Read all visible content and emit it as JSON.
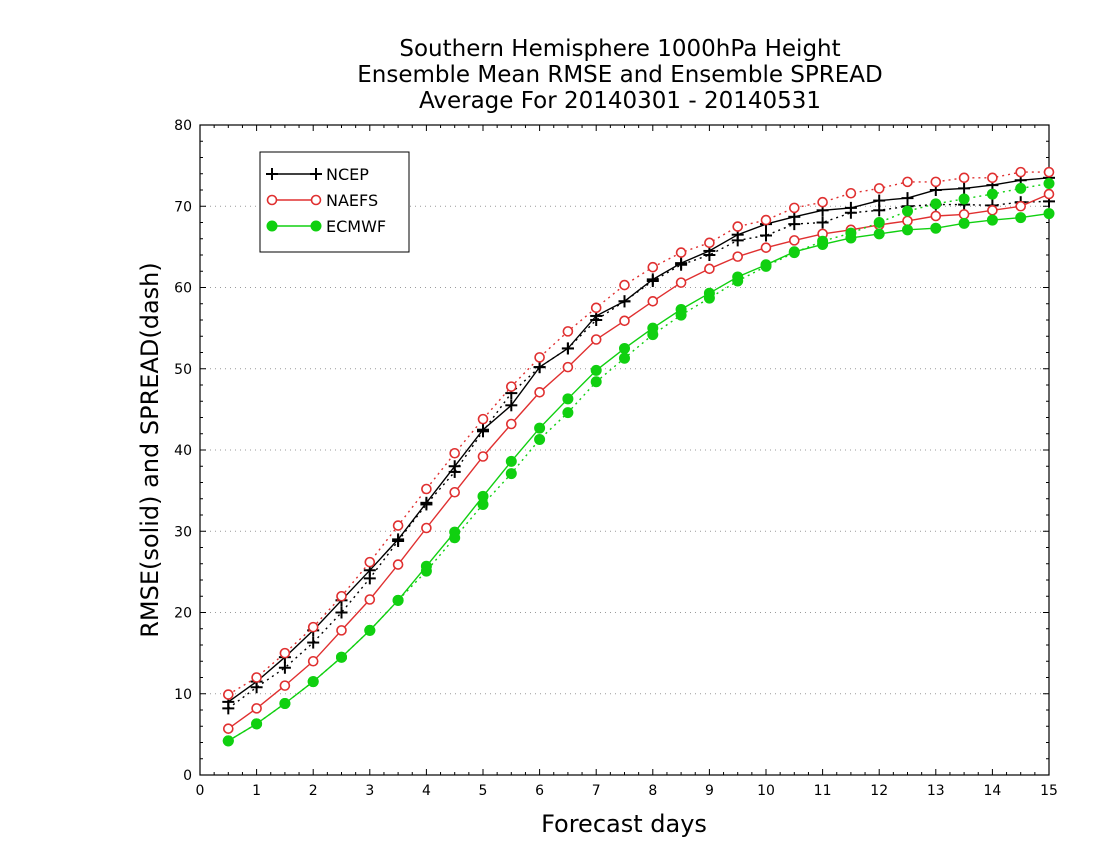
{
  "title": {
    "line1": "Southern Hemisphere 1000hPa Height",
    "line2": "Ensemble Mean RMSE and Ensemble SPREAD",
    "line3": "Average For 20140301 - 20140531"
  },
  "chart_data": {
    "type": "line",
    "xlabel": "Forecast days",
    "ylabel": "RMSE(solid) and SPREAD(dash)",
    "xlim": [
      0,
      15
    ],
    "ylim": [
      0,
      80
    ],
    "xticks": [
      "0",
      "1",
      "2",
      "3",
      "4",
      "5",
      "6",
      "7",
      "8",
      "9",
      "10",
      "11",
      "12",
      "13",
      "14",
      "15"
    ],
    "yticks": [
      "0",
      "10",
      "20",
      "30",
      "40",
      "50",
      "60",
      "70",
      "80"
    ],
    "grid": "horizontal dotted",
    "legend_position": "top-left",
    "x": [
      0.5,
      1,
      1.5,
      2,
      2.5,
      3,
      3.5,
      4,
      4.5,
      5,
      5.5,
      6,
      6.5,
      7,
      7.5,
      8,
      8.5,
      9,
      9.5,
      10,
      10.5,
      11,
      11.5,
      12,
      12.5,
      13,
      13.5,
      14,
      14.5,
      15
    ],
    "series": [
      {
        "name": "NCEP",
        "kind": "rmse",
        "color": "#000000",
        "marker": "plus",
        "values": [
          9.0,
          11.5,
          14.5,
          17.8,
          21.5,
          25.2,
          29.0,
          33.5,
          38.0,
          42.5,
          45.5,
          50.2,
          52.5,
          56.5,
          58.3,
          61.0,
          63.0,
          64.5,
          66.5,
          67.8,
          68.7,
          69.5,
          69.8,
          70.7,
          71.0,
          72.0,
          72.2,
          72.6,
          73.2,
          73.5
        ]
      },
      {
        "name": "NCEP",
        "kind": "spread",
        "color": "#000000",
        "marker": "plus",
        "values": [
          8.2,
          10.8,
          13.2,
          16.3,
          20.0,
          24.2,
          28.8,
          33.3,
          37.3,
          42.3,
          47.0,
          50.2,
          52.5,
          56.0,
          58.3,
          60.8,
          62.8,
          64.0,
          65.8,
          66.4,
          67.8,
          68.0,
          69.2,
          69.5,
          70.0,
          70.2,
          70.2,
          70.1,
          70.5,
          70.6
        ]
      },
      {
        "name": "NAEFS",
        "kind": "rmse",
        "color": "#e03030",
        "marker": "circle",
        "values": [
          5.7,
          8.2,
          11.0,
          14.0,
          17.8,
          21.6,
          25.9,
          30.4,
          34.8,
          39.2,
          43.2,
          47.1,
          50.2,
          53.6,
          55.9,
          58.3,
          60.6,
          62.3,
          63.8,
          64.9,
          65.8,
          66.6,
          67.1,
          67.7,
          68.2,
          68.8,
          69.0,
          69.5,
          70.0,
          71.5
        ]
      },
      {
        "name": "NAEFS",
        "kind": "spread",
        "color": "#e03030",
        "marker": "circle",
        "values": [
          9.9,
          12.0,
          15.0,
          18.2,
          22.0,
          26.2,
          30.7,
          35.2,
          39.6,
          43.8,
          47.8,
          51.4,
          54.6,
          57.5,
          60.3,
          62.5,
          64.3,
          65.5,
          67.5,
          68.3,
          69.8,
          70.5,
          71.6,
          72.2,
          73.0,
          73.0,
          73.5,
          73.5,
          74.2,
          74.2
        ]
      },
      {
        "name": "ECMWF",
        "kind": "rmse",
        "color": "#10d010",
        "marker": "dot",
        "values": [
          4.2,
          6.3,
          8.8,
          11.5,
          14.5,
          17.8,
          21.5,
          25.7,
          29.9,
          34.3,
          38.6,
          42.7,
          46.3,
          49.8,
          52.5,
          55.0,
          57.3,
          59.3,
          61.3,
          62.8,
          64.4,
          65.3,
          66.1,
          66.6,
          67.1,
          67.3,
          67.9,
          68.3,
          68.6,
          69.1
        ]
      },
      {
        "name": "ECMWF",
        "kind": "spread",
        "color": "#10d010",
        "marker": "dot",
        "values": [
          4.2,
          6.3,
          8.8,
          11.5,
          14.5,
          17.8,
          21.5,
          25.1,
          29.2,
          33.3,
          37.1,
          41.3,
          44.6,
          48.4,
          51.3,
          54.2,
          56.6,
          58.7,
          60.8,
          62.6,
          64.3,
          65.7,
          66.7,
          68.0,
          69.4,
          70.3,
          70.9,
          71.5,
          72.2,
          72.8
        ]
      }
    ]
  }
}
